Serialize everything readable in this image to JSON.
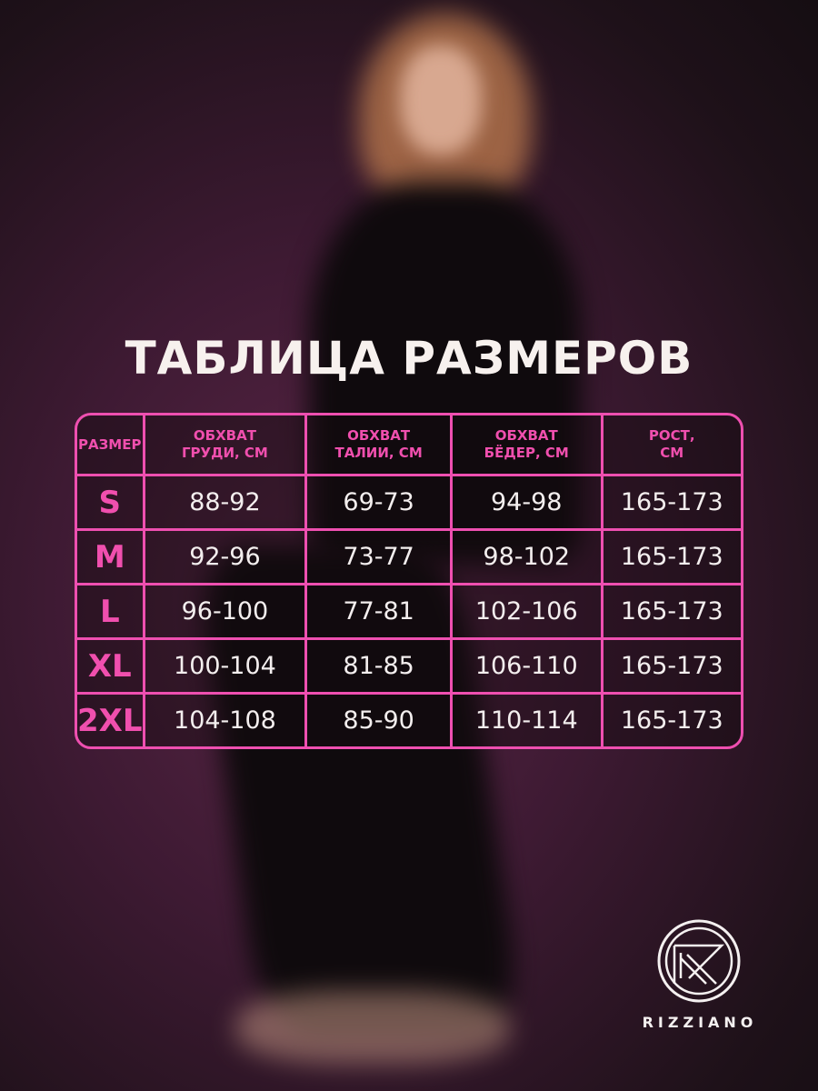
{
  "title": "ТАБЛИЦА РАЗМЕРОВ",
  "table": {
    "headers": [
      "РАЗМЕР",
      "ОБХВАТ ГРУДИ, СМ",
      "ОБХВАТ ТАЛИИ, СМ",
      "ОБХВАТ БЁДЕР, СМ",
      "РОСТ, СМ"
    ],
    "rows": [
      [
        "S",
        "88-92",
        "69-73",
        "94-98",
        "165-173"
      ],
      [
        "M",
        "92-96",
        "73-77",
        "98-102",
        "165-173"
      ],
      [
        "L",
        "96-100",
        "77-81",
        "102-106",
        "165-173"
      ],
      [
        "XL",
        "100-104",
        "81-85",
        "106-110",
        "165-173"
      ],
      [
        "2XL",
        "104-108",
        "85-90",
        "110-114",
        "165-173"
      ]
    ]
  },
  "brand": {
    "name": "RIZZIANO",
    "logo_icon": "circle-r-monogram"
  },
  "colors": {
    "accent": "#ee4fb0",
    "background": "#3e1a33"
  }
}
